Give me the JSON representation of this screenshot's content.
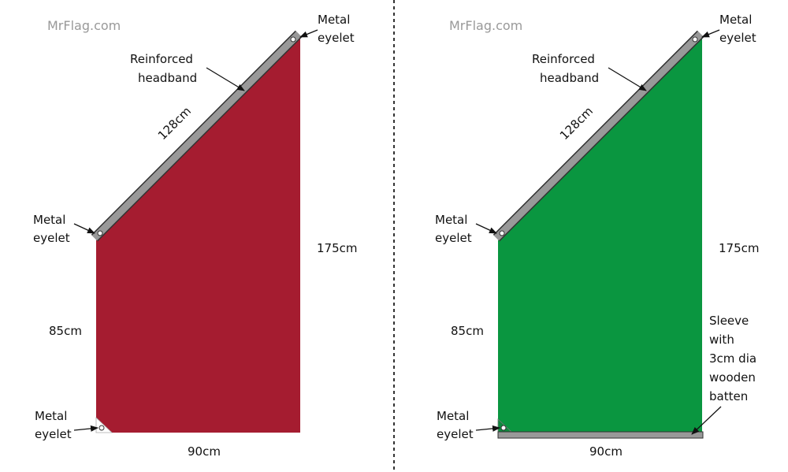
{
  "panels": [
    {
      "watermark": "MrFlag.com",
      "top_eyelet": [
        "Metal",
        "eyelet"
      ],
      "headband": [
        "Reinforced",
        "headband"
      ],
      "diagonal": "128cm",
      "left_eyelet": [
        "Metal",
        "eyelet"
      ],
      "right_side": "175cm",
      "left_side": "85cm",
      "bottom_eyelet": [
        "Metal",
        "eyelet"
      ],
      "bottom": "90cm"
    },
    {
      "watermark": "MrFlag.com",
      "top_eyelet": [
        "Metal",
        "eyelet"
      ],
      "headband": [
        "Reinforced",
        "headband"
      ],
      "diagonal": "128cm",
      "left_eyelet": [
        "Metal",
        "eyelet"
      ],
      "right_side": "175cm",
      "left_side": "85cm",
      "bottom_eyelet": [
        "Metal",
        "eyelet"
      ],
      "bottom": "90cm",
      "sleeve": [
        "Sleeve",
        "with",
        "3cm dia",
        "wooden",
        "batten"
      ]
    }
  ]
}
